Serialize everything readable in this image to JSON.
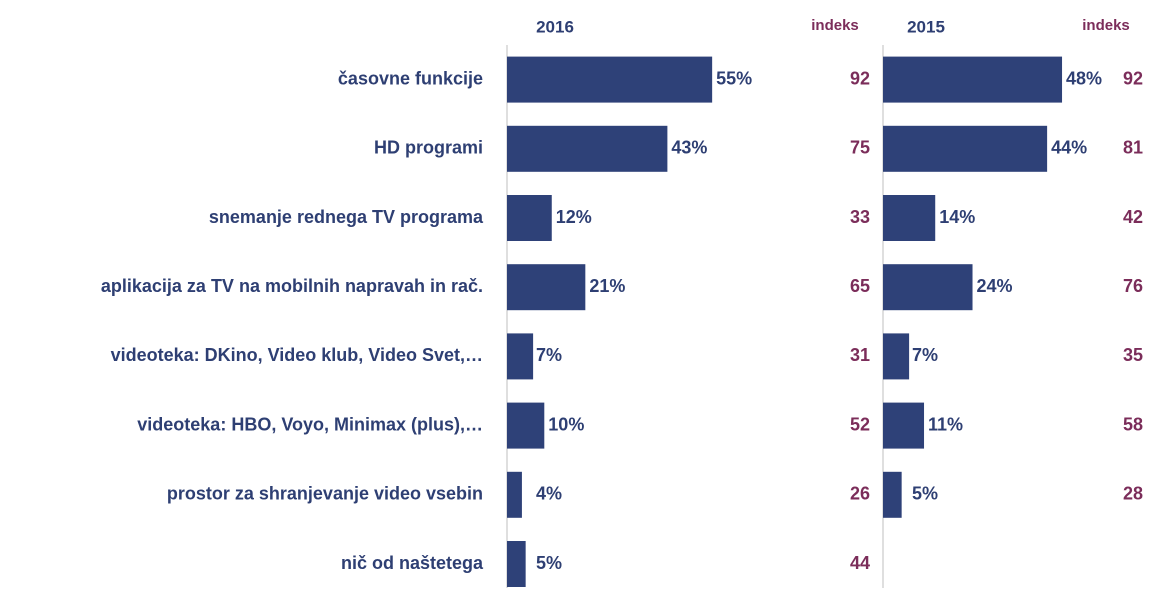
{
  "chart_data": {
    "type": "bar",
    "orientation": "horizontal",
    "categories": [
      "časovne funkcije",
      "HD programi",
      "snemanje rednega TV programa",
      "aplikacija za TV na mobilnih napravah in rač.",
      "videoteka: DKino, Video klub, Video Svet,…",
      "videoteka: HBO, Voyo, Minimax (plus),…",
      "prostor za shranjevanje video vsebin",
      "nič od naštetega"
    ],
    "xlim": [
      0,
      100
    ],
    "series": [
      {
        "name": "2016",
        "color": "#2e4178",
        "values": [
          55,
          43,
          12,
          21,
          7,
          10,
          4,
          5
        ],
        "value_labels": [
          "55%",
          "43%",
          "12%",
          "21%",
          "7%",
          "10%",
          "4%",
          "5%"
        ],
        "index_name": "indeks",
        "index": [
          92,
          75,
          33,
          65,
          31,
          52,
          26,
          44
        ]
      },
      {
        "name": "2015",
        "color": "#2e4178",
        "values": [
          48,
          44,
          14,
          24,
          7,
          11,
          5,
          null
        ],
        "value_labels": [
          "48%",
          "44%",
          "14%",
          "24%",
          "7%",
          "11%",
          "5%",
          null
        ],
        "index_name": "indeks",
        "index": [
          92,
          81,
          42,
          76,
          35,
          58,
          28,
          null
        ]
      }
    ]
  }
}
